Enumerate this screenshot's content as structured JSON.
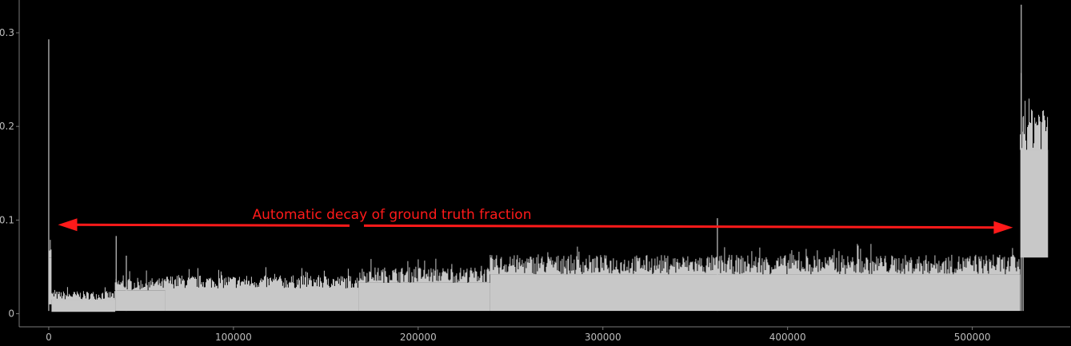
{
  "chart_data": {
    "type": "area",
    "title": "",
    "xlabel": "",
    "ylabel": "",
    "xlim": [
      -16000,
      553000
    ],
    "ylim": [
      -0.014,
      0.335
    ],
    "x_ticks": [
      0,
      100000,
      200000,
      300000,
      400000,
      500000
    ],
    "y_ticks": [
      0,
      0.1,
      0.2,
      0.3
    ],
    "x_tick_labels": [
      "0",
      "100000",
      "200000",
      "300000",
      "400000",
      "500000"
    ],
    "y_tick_labels": [
      "0",
      "0.1",
      "0.2",
      "0.3"
    ],
    "grid": false,
    "legend": "none",
    "series": [
      {
        "segments": [
          {
            "x_start": 0,
            "x_end": 1500,
            "upper": 0.06,
            "lower": 0.01
          },
          {
            "x_start": 1500,
            "x_end": 36000,
            "upper": 0.015,
            "lower": 0.002
          },
          {
            "x_start": 36000,
            "x_end": 63000,
            "upper": 0.025,
            "lower": 0.003
          },
          {
            "x_start": 63000,
            "x_end": 168000,
            "upper": 0.027,
            "lower": 0.003
          },
          {
            "x_start": 168000,
            "x_end": 239000,
            "upper": 0.033,
            "lower": 0.003
          },
          {
            "x_start": 239000,
            "x_end": 526000,
            "upper": 0.042,
            "lower": 0.003
          },
          {
            "x_start": 526000,
            "x_end": 541000,
            "upper": 0.175,
            "lower": 0.06
          }
        ],
        "spikes": [
          {
            "x": 0,
            "y": 0.293
          },
          {
            "x": 36500,
            "y": 0.083
          },
          {
            "x": 42000,
            "y": 0.062
          },
          {
            "x": 362000,
            "y": 0.102
          },
          {
            "x": 526500,
            "y": 0.33
          },
          {
            "x": 527500,
            "y": 0.21
          }
        ]
      }
    ],
    "annotation": {
      "text": "Automatic decay of ground truth fraction",
      "arrow_from": {
        "x": 5000,
        "y": 0.095
      },
      "arrow_to": {
        "x": 522000,
        "y": 0.092
      },
      "color": "#ff1a1a"
    },
    "colors": {
      "background": "#000000",
      "fill": "#c8c8c8",
      "axis": "#7a7a7a",
      "annotation": "#ff1a1a"
    }
  }
}
